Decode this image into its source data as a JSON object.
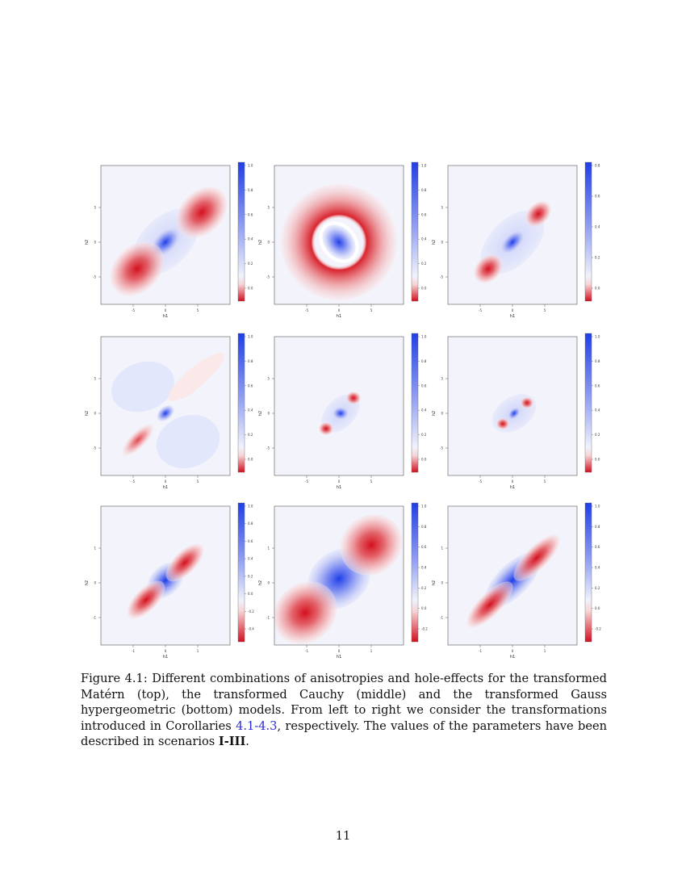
{
  "figure": {
    "panels": [
      {
        "id": "matern-c41",
        "xlabel": "h1",
        "ylabel": "h2",
        "xticks": [
          "-5",
          "0",
          "5"
        ],
        "yticks": [
          "5",
          "0",
          "-5"
        ],
        "colorbar_ticks": [
          "1.0",
          "0.8",
          "0.6",
          "0.4",
          "0.2",
          "0.0"
        ]
      },
      {
        "id": "matern-c42",
        "xlabel": "h1",
        "ylabel": "h2",
        "xticks": [
          "-5",
          "0",
          "5"
        ],
        "yticks": [
          "5",
          "0",
          "-5"
        ],
        "colorbar_ticks": [
          "1.0",
          "0.8",
          "0.6",
          "0.4",
          "0.2",
          "0.0"
        ]
      },
      {
        "id": "matern-c43",
        "xlabel": "h1",
        "ylabel": "h2",
        "xticks": [
          "-5",
          "0",
          "5"
        ],
        "yticks": [
          "5",
          "0",
          "-5"
        ],
        "colorbar_ticks": [
          "0.8",
          "0.6",
          "0.4",
          "0.2",
          "0.0"
        ]
      },
      {
        "id": "cauchy-c41",
        "xlabel": "h1",
        "ylabel": "h2",
        "xticks": [
          "-5",
          "0",
          "5"
        ],
        "yticks": [
          "5",
          "0",
          "-5"
        ],
        "colorbar_ticks": [
          "1.0",
          "0.8",
          "0.6",
          "0.4",
          "0.2",
          "0.0"
        ]
      },
      {
        "id": "cauchy-c42",
        "xlabel": "h1",
        "ylabel": "h2",
        "xticks": [
          "-5",
          "0",
          "5"
        ],
        "yticks": [
          "5",
          "0",
          "-5"
        ],
        "colorbar_ticks": [
          "1.0",
          "0.8",
          "0.6",
          "0.4",
          "0.2",
          "0.0"
        ]
      },
      {
        "id": "cauchy-c43",
        "xlabel": "h1",
        "ylabel": "h2",
        "xticks": [
          "-5",
          "0",
          "5"
        ],
        "yticks": [
          "5",
          "0",
          "-5"
        ],
        "colorbar_ticks": [
          "1.0",
          "0.8",
          "0.6",
          "0.4",
          "0.2",
          "0.0"
        ]
      },
      {
        "id": "gauss-c41",
        "xlabel": "h1",
        "ylabel": "h2",
        "xticks": [
          "-1",
          "0",
          "1"
        ],
        "yticks": [
          "1",
          "0",
          "-1"
        ],
        "colorbar_ticks": [
          "1.0",
          "0.8",
          "0.6",
          "0.4",
          "0.2",
          "0.0",
          "-0.2",
          "-0.4"
        ]
      },
      {
        "id": "gauss-c42",
        "xlabel": "h1",
        "ylabel": "h2",
        "xticks": [
          "-1",
          "0",
          "1"
        ],
        "yticks": [
          "1",
          "0",
          "-1"
        ],
        "colorbar_ticks": [
          "1.0",
          "0.8",
          "0.6",
          "0.4",
          "0.2",
          "0.0",
          "-0.2"
        ]
      },
      {
        "id": "gauss-c43",
        "xlabel": "h1",
        "ylabel": "h2",
        "xticks": [
          "-1",
          "0",
          "1"
        ],
        "yticks": [
          "1",
          "0",
          "-1"
        ],
        "colorbar_ticks": [
          "1.0",
          "0.8",
          "0.6",
          "0.4",
          "0.2",
          "0.0",
          "-0.2"
        ]
      }
    ],
    "colors": {
      "positive": "#1f3fe8",
      "negative": "#d40f1e",
      "neutral": "#f2f3fb"
    }
  },
  "caption": {
    "label": "Figure 4.1:",
    "text_1": " Different combinations of anisotropies and hole-effects for the transformed Matérn (top), the transformed Cauchy (middle) and the transformed Gauss hypergeometric (bottom) models. From left to right we consider the transformations introduced in Corollaries ",
    "corollary_ref": "4.1-4.3",
    "text_2": ", respectively. The values of the parameters have been described in scenarios ",
    "scenarios": "I-III",
    "text_3": "."
  },
  "page_number": "11"
}
